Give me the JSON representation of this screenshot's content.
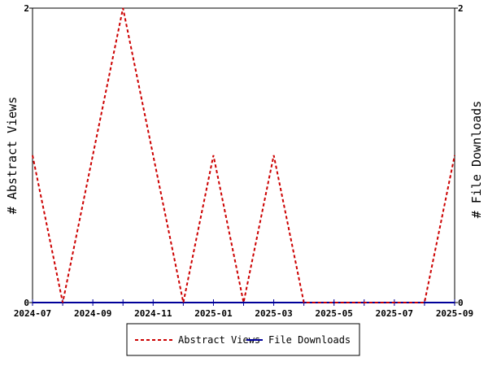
{
  "chart_data": {
    "type": "line",
    "x": [
      "2024-07",
      "2024-08",
      "2024-09",
      "2024-10",
      "2024-11",
      "2024-12",
      "2025-01",
      "2025-02",
      "2025-03",
      "2025-04",
      "2025-05",
      "2025-06",
      "2025-07",
      "2025-08",
      "2025-09"
    ],
    "x_tick_labels": [
      "2024-07",
      "2024-09",
      "2024-11",
      "2025-01",
      "2025-03",
      "2025-05",
      "2025-07",
      "2025-09"
    ],
    "series": [
      {
        "name": "Abstract Views",
        "axis": "left",
        "color": "#cc0000",
        "dash": true,
        "values": [
          1,
          0,
          1,
          2,
          1,
          0,
          1,
          0,
          1,
          0,
          0,
          0,
          0,
          0,
          1
        ]
      },
      {
        "name": "File Downloads",
        "axis": "right",
        "color": "#000099",
        "dash": false,
        "values": [
          0,
          0,
          0,
          0,
          0,
          0,
          0,
          0,
          0,
          0,
          0,
          0,
          0,
          0,
          0
        ]
      }
    ],
    "ylabel_left": "# Abstract Views",
    "ylabel_right": "# File Downloads",
    "ylim_left": [
      0,
      2
    ],
    "ylim_right": [
      0,
      2
    ],
    "y_ticks_left": [
      "0",
      "2"
    ],
    "y_ticks_right": [
      "0",
      "2"
    ],
    "grid": false,
    "legend_position": "bottom-center"
  }
}
